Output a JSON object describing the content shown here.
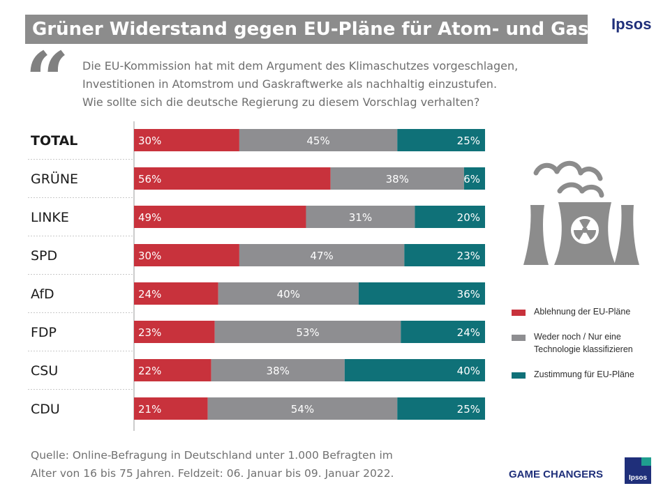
{
  "header": {
    "title": "Grüner Widerstand gegen EU-Pläne für Atom- und Gasenergie",
    "brand": "Ipsos"
  },
  "question": {
    "lines": [
      "Die EU-Kommission hat mit dem Argument des Klimaschutzes vorgeschlagen,",
      "Investitionen in Atomstrom und Gaskraftwerke als nachhaltig einzustufen.",
      "Wie sollte sich die deutsche Regierung zu diesem Vorschlag verhalten?"
    ]
  },
  "chart_data": {
    "type": "bar",
    "orientation": "horizontal",
    "stacked": true,
    "percent_stacked": true,
    "categories": [
      "TOTAL",
      "GRÜNE",
      "LINKE",
      "SPD",
      "AfD",
      "FDP",
      "CSU",
      "CDU"
    ],
    "series": [
      {
        "name": "Ablehnung der EU-Pläne",
        "color": "#c8323c",
        "values": [
          30,
          56,
          49,
          30,
          24,
          23,
          22,
          21
        ]
      },
      {
        "name": "Weder noch / Nur eine Technologie klassifizieren",
        "color": "#8e8e91",
        "values": [
          45,
          38,
          31,
          47,
          40,
          53,
          38,
          54
        ]
      },
      {
        "name": "Zustimmung für EU-Pläne",
        "color": "#0f7178",
        "values": [
          25,
          6,
          20,
          23,
          36,
          24,
          40,
          25
        ]
      }
    ],
    "value_suffix": "%",
    "xlim": [
      0,
      100
    ],
    "legend_position": "right",
    "grid": false
  },
  "legend": {
    "items": [
      {
        "label": "Ablehnung der EU-Pläne",
        "color": "#c8323c"
      },
      {
        "label": "Weder noch / Nur eine\nTechnologie klassifizieren",
        "color": "#8e8e91"
      },
      {
        "label": "Zustimmung für EU-Pläne",
        "color": "#0f7178"
      }
    ]
  },
  "footer": {
    "source_lines": [
      "Quelle: Online-Befragung in Deutschland unter 1.000 Befragten im",
      "Alter von 16 bis 75 Jahren. Feldzeit: 06. Januar bis 09. Januar 2022."
    ],
    "tagline": "GAME CHANGERS",
    "logo_text": "Ipsos"
  },
  "icons": {
    "quote": "quote-icon",
    "plant": "nuclear-plant-icon"
  }
}
